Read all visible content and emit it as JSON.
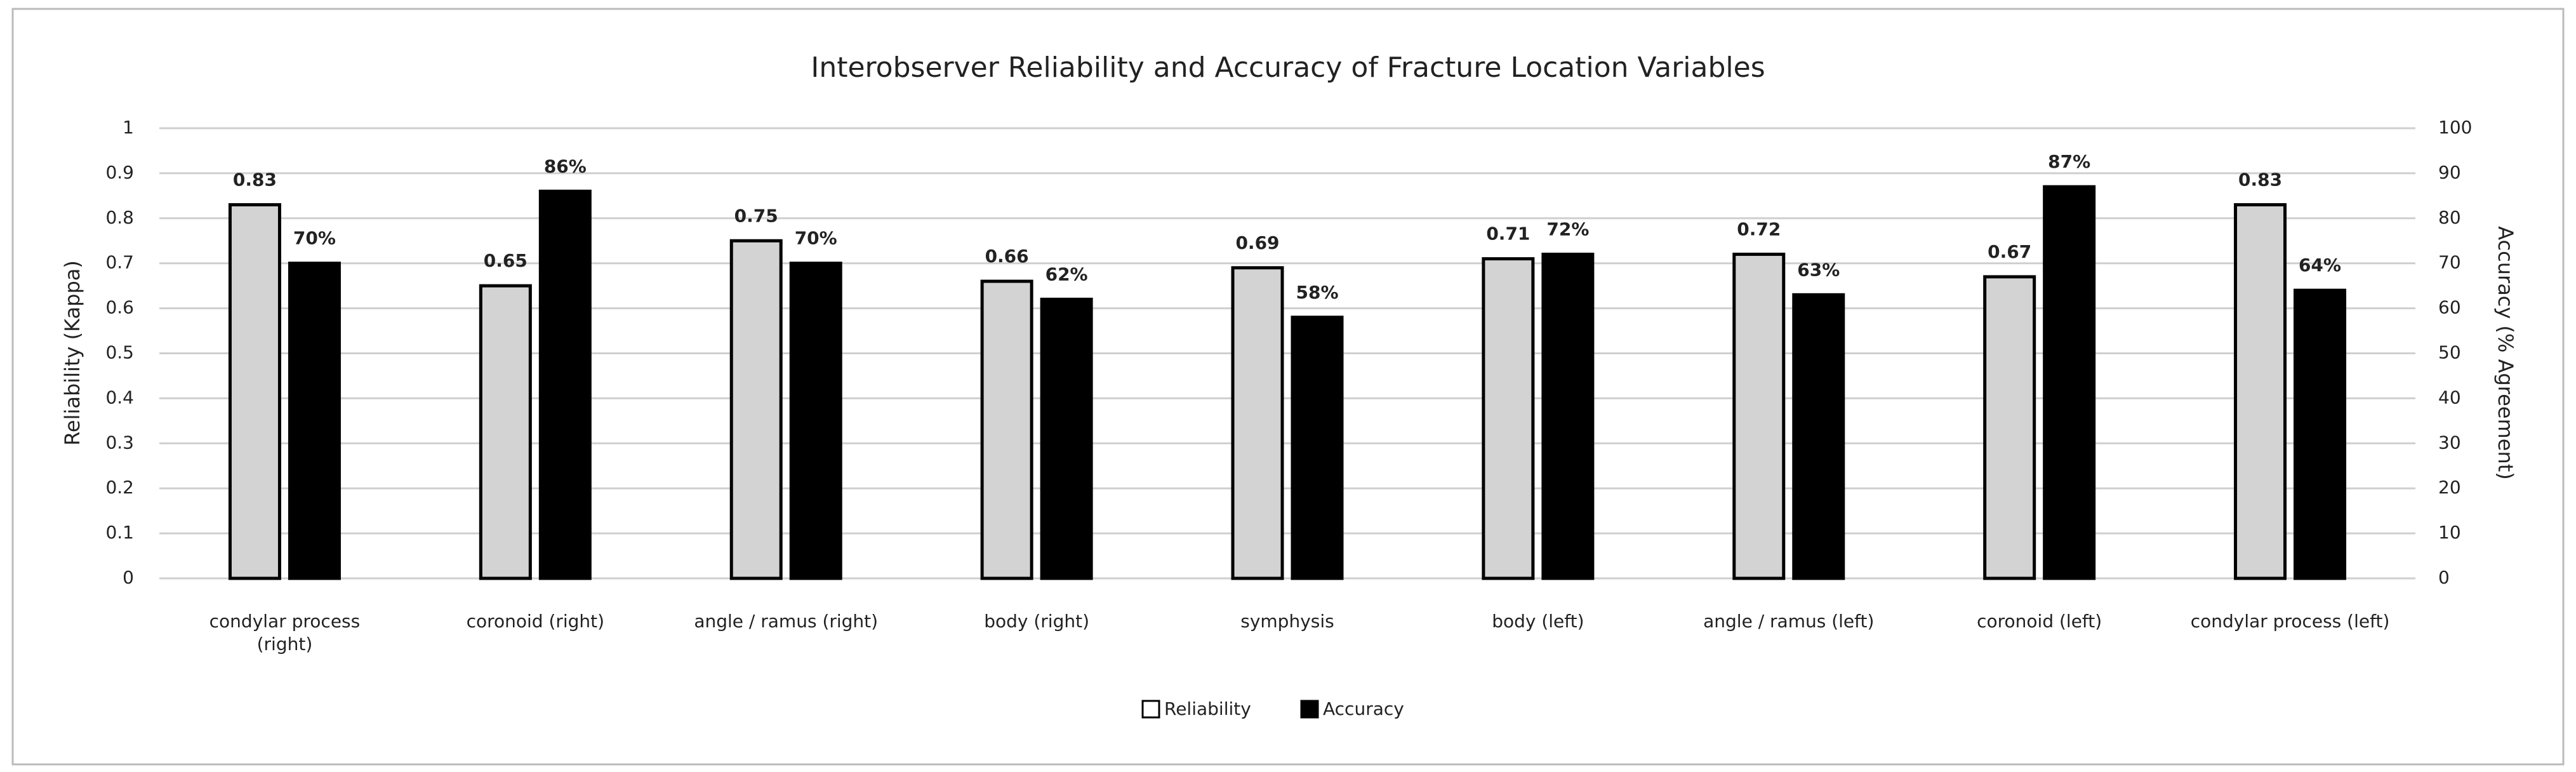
{
  "chart_data": {
    "type": "bar",
    "title": "Interobserver Reliability and Accuracy of Fracture Location Variables",
    "y_label": "Reliability (Kappa)",
    "y2_label": "Accuracy (% Agreement)",
    "categories": [
      "condylar process (right)",
      "coronoid (right)",
      "angle / ramus (right)",
      "body (right)",
      "symphysis",
      "body (left)",
      "angle / ramus (left)",
      "coronoid (left)",
      "condylar process (left)"
    ],
    "series": [
      {
        "name": "Reliability",
        "color": "#d3d3d3",
        "values": [
          0.83,
          0.65,
          0.75,
          0.66,
          0.69,
          0.71,
          0.72,
          0.67,
          0.83
        ]
      },
      {
        "name": "Accuracy",
        "color": "#000000",
        "axis": "y2",
        "values": [
          70,
          86,
          70,
          62,
          58,
          72,
          63,
          87,
          64
        ],
        "value_labels": [
          "70%",
          "86%",
          "70%",
          "62%",
          "58%",
          "72%",
          "63%",
          "87%",
          "64%"
        ]
      }
    ],
    "ylim": [
      0,
      1
    ],
    "yticks": [
      0,
      0.1,
      0.2,
      0.3,
      0.4,
      0.5,
      0.6,
      0.7,
      0.8,
      0.9,
      1
    ],
    "y2lim": [
      0,
      100
    ],
    "y2ticks": [
      0,
      10,
      20,
      30,
      40,
      50,
      60,
      70,
      80,
      90,
      100
    ],
    "grid": true,
    "legend": "bottom"
  }
}
